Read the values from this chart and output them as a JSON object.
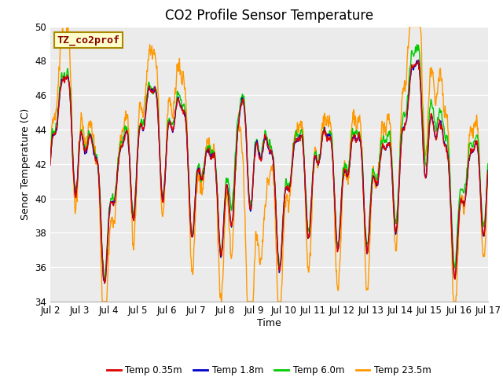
{
  "title": "CO2 Profile Sensor Temperature",
  "ylabel": "Senor Temperature (C)",
  "xlabel": "Time",
  "ylim": [
    34,
    50
  ],
  "xlim": [
    0,
    360
  ],
  "plot_bg_color": "#ebebeb",
  "fig_bg_color": "#ffffff",
  "annotation_text": "TZ_co2prof",
  "annotation_color": "#880000",
  "annotation_bg": "#ffffcc",
  "annotation_border": "#aa8800",
  "xtick_labels": [
    "Jul 2",
    "Jul 3",
    "Jul 4",
    "Jul 5",
    "Jul 6",
    "Jul 7",
    "Jul 8",
    "Jul 9",
    "Jul 10",
    "Jul 11",
    "Jul 12",
    "Jul 13",
    "Jul 14",
    "Jul 15",
    "Jul 16",
    "Jul 17"
  ],
  "xtick_positions": [
    0,
    24,
    48,
    72,
    96,
    120,
    144,
    168,
    192,
    216,
    240,
    264,
    288,
    312,
    336,
    360
  ],
  "ytick_labels": [
    "34",
    "36",
    "38",
    "40",
    "42",
    "44",
    "46",
    "48",
    "50"
  ],
  "ytick_positions": [
    34,
    36,
    38,
    40,
    42,
    44,
    46,
    48,
    50
  ],
  "colors": {
    "temp035": "#dd0000",
    "temp18": "#0000cc",
    "temp60": "#00cc00",
    "temp235": "#ff9900"
  },
  "legend_labels": [
    "Temp 0.35m",
    "Temp 1.8m",
    "Temp 6.0m",
    "Temp 23.5m"
  ],
  "title_fontsize": 12,
  "axis_fontsize": 9,
  "tick_fontsize": 8.5
}
